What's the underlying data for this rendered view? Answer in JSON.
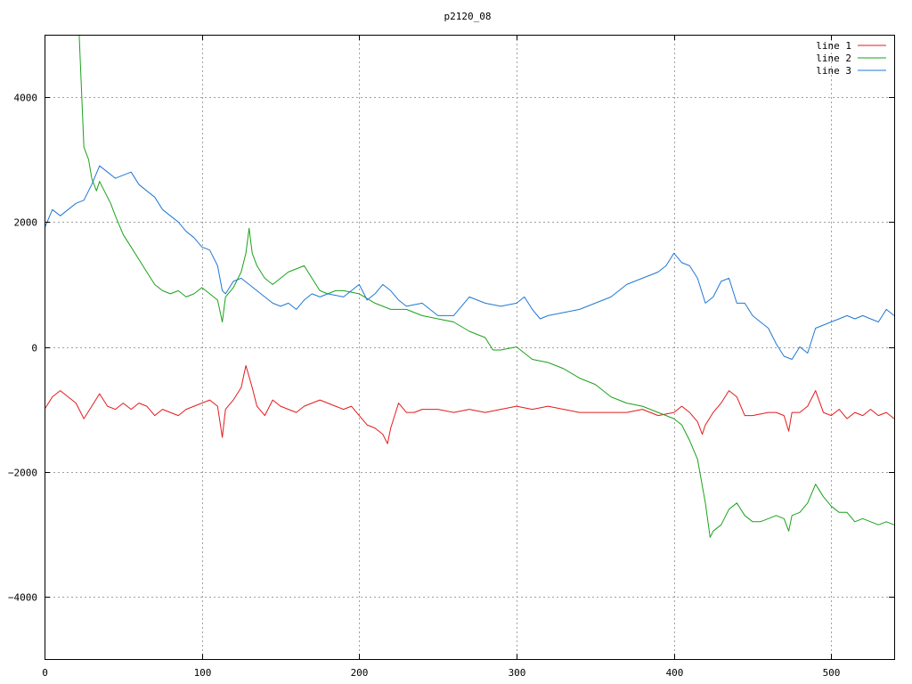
{
  "chart_data": {
    "type": "line",
    "title": "p2120_08",
    "xlabel": "",
    "ylabel": "",
    "xlim": [
      0,
      540
    ],
    "ylim": [
      -5000,
      5000
    ],
    "xticks": [
      0,
      100,
      200,
      300,
      400,
      500
    ],
    "yticks": [
      -4000,
      -2000,
      0,
      2000,
      4000
    ],
    "grid": true,
    "legend": "top-right",
    "series": [
      {
        "name": "line 1",
        "color": "#e41a1c",
        "points": [
          [
            0,
            -1000
          ],
          [
            5,
            -800
          ],
          [
            10,
            -700
          ],
          [
            15,
            -800
          ],
          [
            20,
            -900
          ],
          [
            25,
            -1150
          ],
          [
            30,
            -950
          ],
          [
            35,
            -750
          ],
          [
            40,
            -950
          ],
          [
            45,
            -1000
          ],
          [
            50,
            -900
          ],
          [
            55,
            -1000
          ],
          [
            60,
            -900
          ],
          [
            65,
            -950
          ],
          [
            70,
            -1100
          ],
          [
            75,
            -1000
          ],
          [
            80,
            -1050
          ],
          [
            85,
            -1100
          ],
          [
            90,
            -1000
          ],
          [
            95,
            -950
          ],
          [
            100,
            -900
          ],
          [
            105,
            -850
          ],
          [
            110,
            -950
          ],
          [
            113,
            -1450
          ],
          [
            115,
            -1000
          ],
          [
            120,
            -850
          ],
          [
            125,
            -650
          ],
          [
            128,
            -300
          ],
          [
            132,
            -650
          ],
          [
            135,
            -950
          ],
          [
            140,
            -1100
          ],
          [
            145,
            -850
          ],
          [
            150,
            -950
          ],
          [
            155,
            -1000
          ],
          [
            160,
            -1050
          ],
          [
            165,
            -950
          ],
          [
            170,
            -900
          ],
          [
            175,
            -850
          ],
          [
            180,
            -900
          ],
          [
            185,
            -950
          ],
          [
            190,
            -1000
          ],
          [
            195,
            -950
          ],
          [
            200,
            -1100
          ],
          [
            205,
            -1250
          ],
          [
            210,
            -1300
          ],
          [
            215,
            -1400
          ],
          [
            218,
            -1550
          ],
          [
            220,
            -1300
          ],
          [
            225,
            -900
          ],
          [
            230,
            -1050
          ],
          [
            235,
            -1050
          ],
          [
            240,
            -1000
          ],
          [
            250,
            -1000
          ],
          [
            260,
            -1050
          ],
          [
            270,
            -1000
          ],
          [
            280,
            -1050
          ],
          [
            290,
            -1000
          ],
          [
            300,
            -950
          ],
          [
            310,
            -1000
          ],
          [
            320,
            -950
          ],
          [
            330,
            -1000
          ],
          [
            340,
            -1050
          ],
          [
            350,
            -1050
          ],
          [
            360,
            -1050
          ],
          [
            370,
            -1050
          ],
          [
            380,
            -1000
          ],
          [
            390,
            -1100
          ],
          [
            400,
            -1050
          ],
          [
            405,
            -950
          ],
          [
            410,
            -1050
          ],
          [
            415,
            -1200
          ],
          [
            418,
            -1400
          ],
          [
            420,
            -1250
          ],
          [
            425,
            -1050
          ],
          [
            430,
            -900
          ],
          [
            435,
            -700
          ],
          [
            440,
            -800
          ],
          [
            445,
            -1100
          ],
          [
            450,
            -1100
          ],
          [
            460,
            -1050
          ],
          [
            465,
            -1050
          ],
          [
            470,
            -1100
          ],
          [
            473,
            -1350
          ],
          [
            475,
            -1050
          ],
          [
            480,
            -1050
          ],
          [
            485,
            -950
          ],
          [
            490,
            -700
          ],
          [
            495,
            -1050
          ],
          [
            500,
            -1100
          ],
          [
            505,
            -1000
          ],
          [
            510,
            -1150
          ],
          [
            515,
            -1050
          ],
          [
            520,
            -1100
          ],
          [
            525,
            -1000
          ],
          [
            530,
            -1100
          ],
          [
            535,
            -1050
          ],
          [
            540,
            -1150
          ]
        ]
      },
      {
        "name": "line 2",
        "color": "#1ba21b",
        "points": [
          [
            22,
            5000
          ],
          [
            25,
            3200
          ],
          [
            28,
            3000
          ],
          [
            30,
            2700
          ],
          [
            33,
            2500
          ],
          [
            35,
            2650
          ],
          [
            38,
            2500
          ],
          [
            42,
            2300
          ],
          [
            45,
            2100
          ],
          [
            50,
            1800
          ],
          [
            55,
            1600
          ],
          [
            60,
            1400
          ],
          [
            65,
            1200
          ],
          [
            70,
            1000
          ],
          [
            75,
            900
          ],
          [
            80,
            850
          ],
          [
            85,
            900
          ],
          [
            90,
            800
          ],
          [
            95,
            850
          ],
          [
            100,
            950
          ],
          [
            105,
            850
          ],
          [
            110,
            750
          ],
          [
            113,
            400
          ],
          [
            115,
            800
          ],
          [
            120,
            950
          ],
          [
            125,
            1200
          ],
          [
            128,
            1500
          ],
          [
            130,
            1900
          ],
          [
            132,
            1500
          ],
          [
            135,
            1300
          ],
          [
            140,
            1100
          ],
          [
            145,
            1000
          ],
          [
            150,
            1100
          ],
          [
            155,
            1200
          ],
          [
            160,
            1250
          ],
          [
            165,
            1300
          ],
          [
            170,
            1100
          ],
          [
            175,
            900
          ],
          [
            180,
            850
          ],
          [
            185,
            900
          ],
          [
            190,
            900
          ],
          [
            200,
            850
          ],
          [
            210,
            700
          ],
          [
            220,
            600
          ],
          [
            230,
            600
          ],
          [
            240,
            500
          ],
          [
            250,
            450
          ],
          [
            260,
            400
          ],
          [
            270,
            250
          ],
          [
            280,
            150
          ],
          [
            285,
            -50
          ],
          [
            290,
            -50
          ],
          [
            300,
            0
          ],
          [
            310,
            -200
          ],
          [
            320,
            -250
          ],
          [
            330,
            -350
          ],
          [
            340,
            -500
          ],
          [
            350,
            -600
          ],
          [
            355,
            -700
          ],
          [
            360,
            -800
          ],
          [
            370,
            -900
          ],
          [
            380,
            -950
          ],
          [
            390,
            -1050
          ],
          [
            400,
            -1150
          ],
          [
            405,
            -1250
          ],
          [
            410,
            -1500
          ],
          [
            415,
            -1800
          ],
          [
            420,
            -2500
          ],
          [
            423,
            -3050
          ],
          [
            425,
            -2950
          ],
          [
            430,
            -2850
          ],
          [
            435,
            -2600
          ],
          [
            440,
            -2500
          ],
          [
            445,
            -2700
          ],
          [
            450,
            -2800
          ],
          [
            455,
            -2800
          ],
          [
            460,
            -2750
          ],
          [
            465,
            -2700
          ],
          [
            470,
            -2750
          ],
          [
            473,
            -2950
          ],
          [
            475,
            -2700
          ],
          [
            480,
            -2650
          ],
          [
            485,
            -2500
          ],
          [
            490,
            -2200
          ],
          [
            495,
            -2400
          ],
          [
            500,
            -2550
          ],
          [
            505,
            -2650
          ],
          [
            510,
            -2650
          ],
          [
            515,
            -2800
          ],
          [
            520,
            -2750
          ],
          [
            525,
            -2800
          ],
          [
            530,
            -2850
          ],
          [
            535,
            -2800
          ],
          [
            540,
            -2850
          ]
        ]
      },
      {
        "name": "line 3",
        "color": "#1f78d4",
        "points": [
          [
            0,
            1900
          ],
          [
            5,
            2200
          ],
          [
            10,
            2100
          ],
          [
            15,
            2200
          ],
          [
            20,
            2300
          ],
          [
            25,
            2350
          ],
          [
            30,
            2600
          ],
          [
            35,
            2900
          ],
          [
            40,
            2800
          ],
          [
            45,
            2700
          ],
          [
            50,
            2750
          ],
          [
            55,
            2800
          ],
          [
            60,
            2600
          ],
          [
            65,
            2500
          ],
          [
            70,
            2400
          ],
          [
            75,
            2200
          ],
          [
            80,
            2100
          ],
          [
            85,
            2000
          ],
          [
            90,
            1850
          ],
          [
            95,
            1750
          ],
          [
            100,
            1600
          ],
          [
            105,
            1550
          ],
          [
            110,
            1300
          ],
          [
            113,
            900
          ],
          [
            115,
            850
          ],
          [
            120,
            1050
          ],
          [
            125,
            1100
          ],
          [
            130,
            1000
          ],
          [
            135,
            900
          ],
          [
            140,
            800
          ],
          [
            145,
            700
          ],
          [
            150,
            650
          ],
          [
            155,
            700
          ],
          [
            160,
            600
          ],
          [
            165,
            750
          ],
          [
            170,
            850
          ],
          [
            175,
            800
          ],
          [
            180,
            850
          ],
          [
            190,
            800
          ],
          [
            200,
            1000
          ],
          [
            205,
            750
          ],
          [
            210,
            850
          ],
          [
            215,
            1000
          ],
          [
            220,
            900
          ],
          [
            225,
            750
          ],
          [
            230,
            650
          ],
          [
            240,
            700
          ],
          [
            250,
            500
          ],
          [
            260,
            500
          ],
          [
            270,
            800
          ],
          [
            280,
            700
          ],
          [
            290,
            650
          ],
          [
            300,
            700
          ],
          [
            305,
            800
          ],
          [
            310,
            600
          ],
          [
            315,
            450
          ],
          [
            320,
            500
          ],
          [
            330,
            550
          ],
          [
            340,
            600
          ],
          [
            350,
            700
          ],
          [
            360,
            800
          ],
          [
            370,
            1000
          ],
          [
            380,
            1100
          ],
          [
            385,
            1150
          ],
          [
            390,
            1200
          ],
          [
            395,
            1300
          ],
          [
            400,
            1500
          ],
          [
            405,
            1350
          ],
          [
            410,
            1300
          ],
          [
            415,
            1100
          ],
          [
            420,
            700
          ],
          [
            425,
            800
          ],
          [
            430,
            1050
          ],
          [
            435,
            1100
          ],
          [
            440,
            700
          ],
          [
            445,
            700
          ],
          [
            450,
            500
          ],
          [
            455,
            400
          ],
          [
            460,
            300
          ],
          [
            465,
            50
          ],
          [
            470,
            -150
          ],
          [
            475,
            -200
          ],
          [
            480,
            0
          ],
          [
            485,
            -100
          ],
          [
            490,
            300
          ],
          [
            495,
            350
          ],
          [
            500,
            400
          ],
          [
            505,
            450
          ],
          [
            510,
            500
          ],
          [
            515,
            450
          ],
          [
            520,
            500
          ],
          [
            525,
            450
          ],
          [
            530,
            400
          ],
          [
            535,
            600
          ],
          [
            540,
            500
          ]
        ]
      }
    ]
  }
}
